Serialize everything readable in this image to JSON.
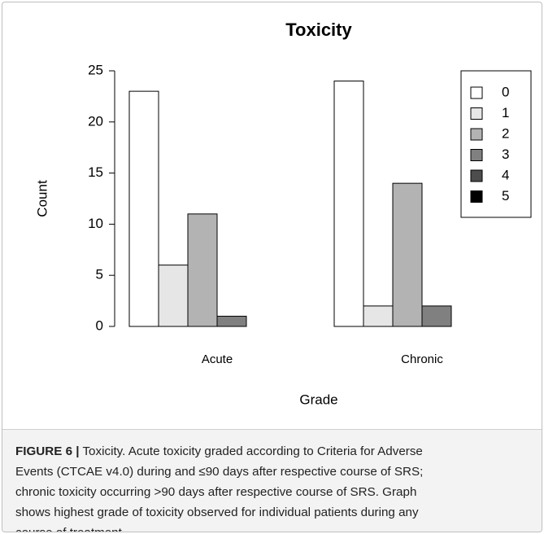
{
  "chart_data": {
    "type": "bar",
    "title": "Toxicity",
    "categories": [
      "Acute",
      "Chronic"
    ],
    "series": [
      {
        "name": "0",
        "color": "#ffffff",
        "values": [
          23,
          24
        ]
      },
      {
        "name": "1",
        "color": "#e6e6e6",
        "values": [
          6,
          2
        ]
      },
      {
        "name": "2",
        "color": "#b3b3b3",
        "values": [
          11,
          14
        ]
      },
      {
        "name": "3",
        "color": "#808080",
        "values": [
          1,
          2
        ]
      },
      {
        "name": "4",
        "color": "#4d4d4d",
        "values": [
          0,
          0
        ]
      },
      {
        "name": "5",
        "color": "#000000",
        "values": [
          0,
          0
        ]
      }
    ],
    "xlabel": "Grade",
    "ylabel": "Count",
    "ylim": [
      0,
      25
    ],
    "yticks": [
      0,
      5,
      10,
      15,
      20,
      25
    ],
    "legend": "topright",
    "grid": false
  },
  "caption": {
    "label": "FIGURE 6 |",
    "lines": [
      "Toxicity. Acute toxicity graded according to Criteria for Adverse",
      "Events (CTCAE v4.0) during and ≤90 days after respective course of SRS;",
      "chronic toxicity occurring >90 days after respective course of SRS. Graph",
      "shows highest grade of toxicity observed for individual patients during any",
      "course of treatment."
    ]
  }
}
